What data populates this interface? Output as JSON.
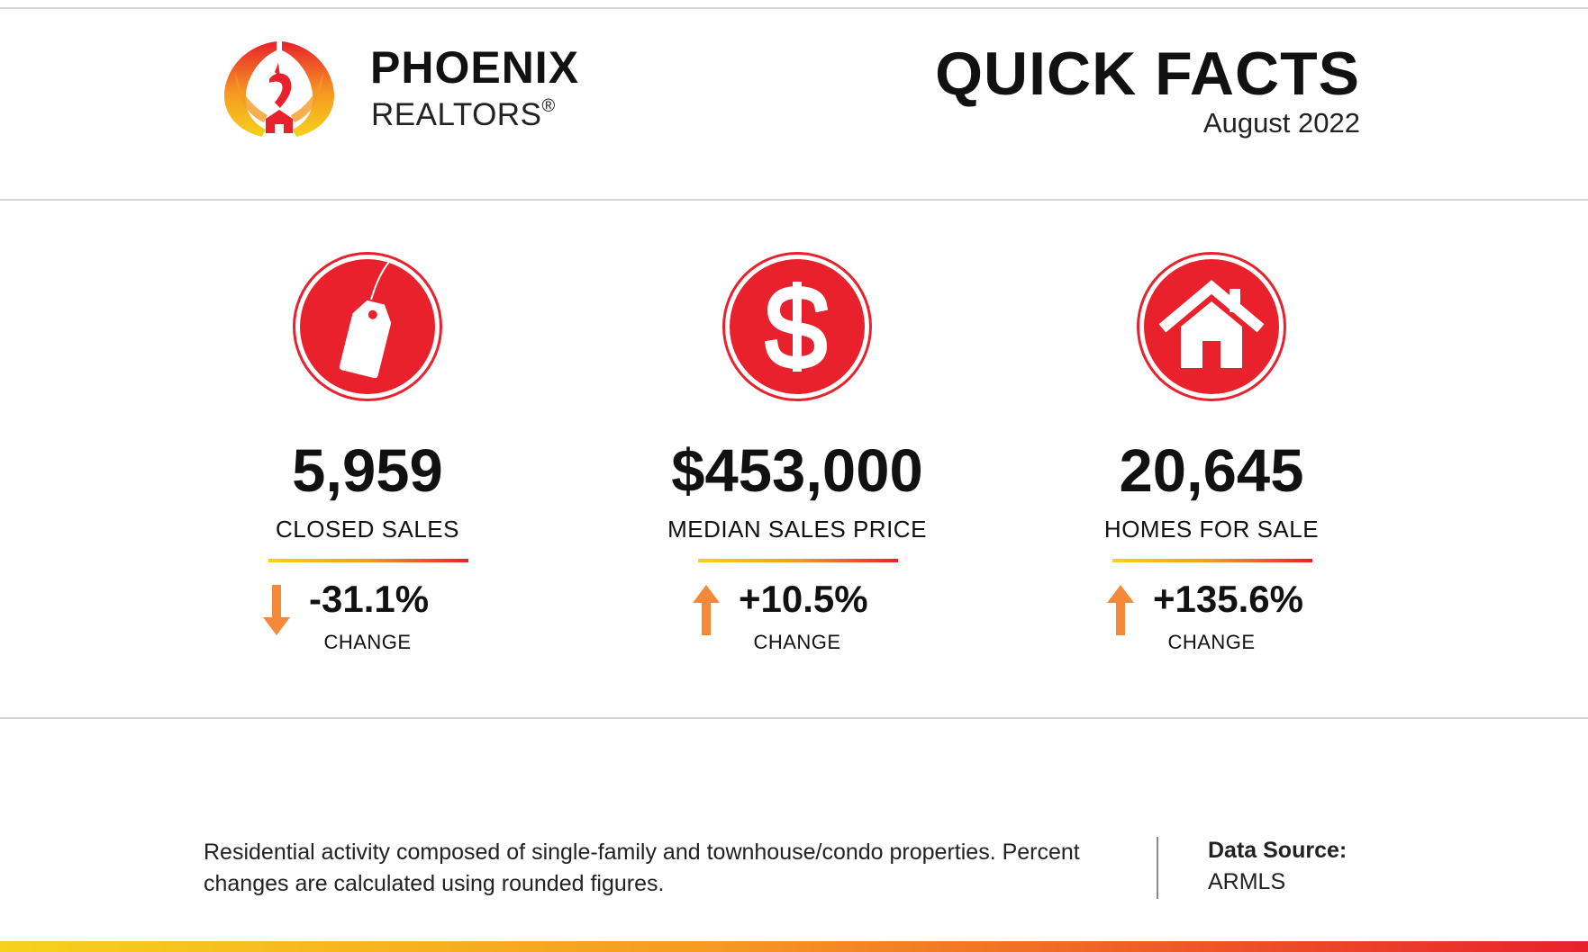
{
  "header": {
    "brand_name": "PHOENIX",
    "brand_sub": "REALTORS",
    "brand_reg": "®",
    "title": "QUICK FACTS",
    "date": "August 2022"
  },
  "stats": [
    {
      "icon": "price-tag-icon",
      "value": "5,959",
      "label": "CLOSED SALES",
      "direction": "down",
      "change": "-31.1%",
      "change_label": "CHANGE"
    },
    {
      "icon": "dollar-sign-icon",
      "value": "$453,000",
      "label": "MEDIAN SALES PRICE",
      "direction": "up",
      "change": "+10.5%",
      "change_label": "CHANGE"
    },
    {
      "icon": "house-icon",
      "value": "20,645",
      "label": "HOMES FOR SALE",
      "direction": "up",
      "change": "+135.6%",
      "change_label": "CHANGE"
    }
  ],
  "footer": {
    "note": "Residential activity composed of single-family and townhouse/condo properties. Percent changes are calculated using rounded figures.",
    "source_label": "Data Source:",
    "source_value": "ARMLS"
  },
  "colors": {
    "accent_red": "#e8212c",
    "arrow_orange": "#f5893a",
    "gradient_yellow": "#f6d21b",
    "gradient_orange": "#f59a22"
  }
}
